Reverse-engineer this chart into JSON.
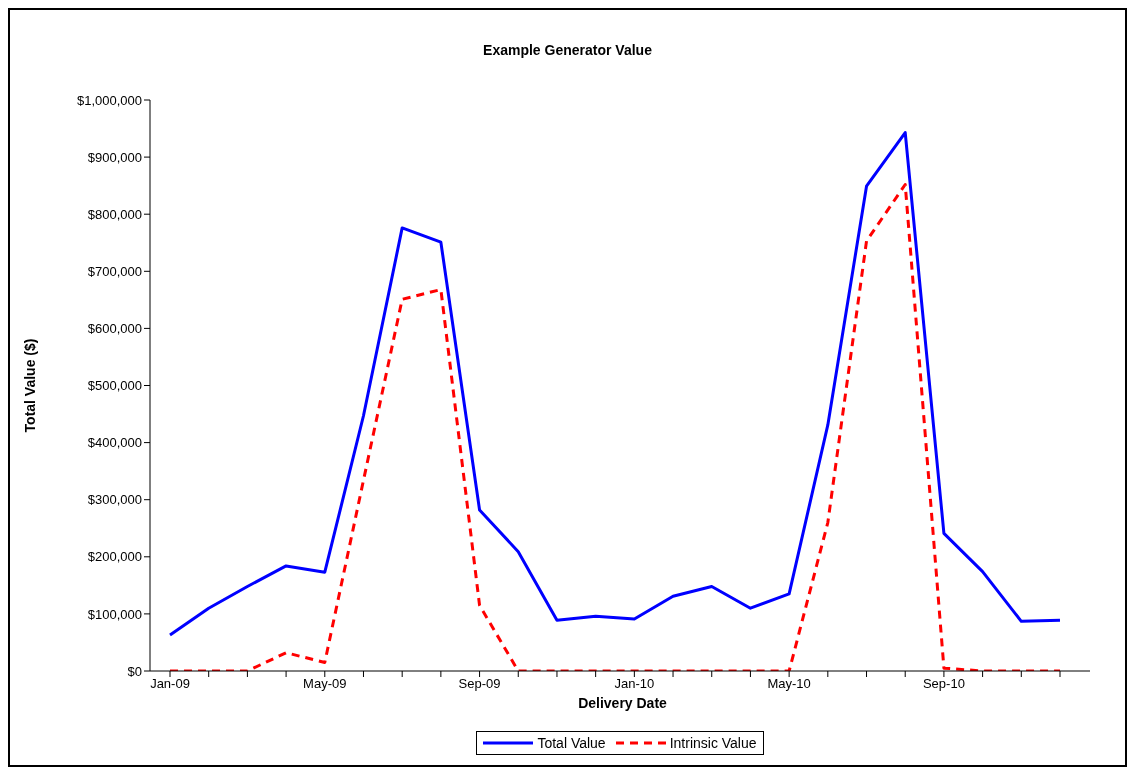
{
  "chart_data": {
    "type": "line",
    "title": "Example Generator Value",
    "xlabel": "Delivery Date",
    "ylabel": "Total Value ($)",
    "categories": [
      "Jan-09",
      null,
      null,
      null,
      "May-09",
      null,
      null,
      null,
      "Sep-09",
      null,
      null,
      null,
      "Jan-10",
      null,
      null,
      null,
      "May-10",
      null,
      null,
      null,
      "Sep-10",
      null,
      null,
      null
    ],
    "series": [
      {
        "name": "Total Value",
        "color": "#0000ff",
        "line_style": "solid",
        "values": [
          63000,
          110000,
          148000,
          184000,
          173000,
          447000,
          776000,
          751000,
          282000,
          209000,
          89000,
          96000,
          91000,
          131000,
          148000,
          110000,
          135000,
          431000,
          849000,
          943000,
          241000,
          174000,
          87000,
          89000
        ]
      },
      {
        "name": "Intrinsic Value",
        "color": "#ff0000",
        "line_style": "dashed",
        "values": [
          0,
          0,
          0,
          32000,
          15000,
          334000,
          651000,
          668000,
          115000,
          0,
          0,
          0,
          0,
          0,
          0,
          0,
          0,
          260000,
          753000,
          852000,
          5000,
          0,
          0,
          0
        ]
      }
    ],
    "ylim": [
      0,
      1000000
    ],
    "yticks": [
      {
        "value": 0,
        "label": "$0"
      },
      {
        "value": 100000,
        "label": "$100,000"
      },
      {
        "value": 200000,
        "label": "$200,000"
      },
      {
        "value": 300000,
        "label": "$300,000"
      },
      {
        "value": 400000,
        "label": "$400,000"
      },
      {
        "value": 500000,
        "label": "$500,000"
      },
      {
        "value": 600000,
        "label": "$600,000"
      },
      {
        "value": 700000,
        "label": "$700,000"
      },
      {
        "value": 800000,
        "label": "$800,000"
      },
      {
        "value": 900000,
        "label": "$900,000"
      },
      {
        "value": 1000000,
        "label": "$1,000,000"
      }
    ],
    "grid": false,
    "legend": "bottom",
    "marker": "none"
  }
}
